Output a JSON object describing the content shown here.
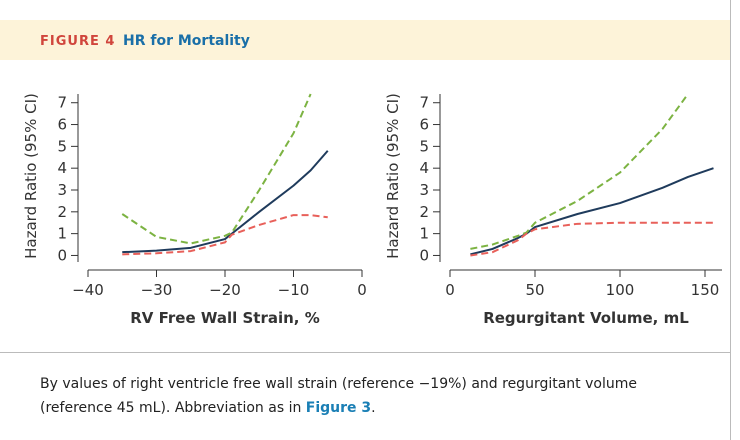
{
  "header": {
    "label": "FIGURE 4",
    "title": "HR for Mortality"
  },
  "chart_data": [
    {
      "type": "line",
      "ylabel": "Hazard Ratio (95% CI)",
      "xlabel": "RV Free Wall Strain, %",
      "x": [
        -35,
        -30,
        -25,
        -20,
        -19,
        -15,
        -10,
        -7.5,
        -5
      ],
      "series": [
        {
          "color": "#1f3b5c",
          "dash": false,
          "values": [
            0.15,
            0.22,
            0.35,
            0.75,
            1.0,
            2.0,
            3.2,
            3.9,
            4.8
          ]
        },
        {
          "color": "#7cb342",
          "dash": true,
          "values": [
            1.9,
            0.85,
            0.55,
            0.9,
            1.05,
            3.0,
            5.6,
            7.4,
            null
          ]
        },
        {
          "color": "#e8605a",
          "dash": true,
          "values": [
            0.05,
            0.1,
            0.2,
            0.6,
            0.95,
            1.4,
            1.85,
            1.85,
            1.75
          ]
        }
      ],
      "xlim": [
        -40,
        0
      ],
      "xticks": [
        {
          "value": -40,
          "label": "−40"
        },
        {
          "value": -30,
          "label": "−30"
        },
        {
          "value": -20,
          "label": "−20"
        },
        {
          "value": -10,
          "label": "−10"
        },
        0
      ],
      "ylim": [
        -0.3,
        7.4
      ],
      "yticks": [
        0,
        1,
        2,
        3,
        4,
        5,
        6,
        7
      ]
    },
    {
      "type": "line",
      "ylabel": "Hazard Ratio (95% CI)",
      "xlabel": "Regurgitant Volume, mL",
      "x": [
        12,
        25,
        40,
        45,
        50,
        75,
        100,
        125,
        140,
        155
      ],
      "series": [
        {
          "color": "#1f3b5c",
          "dash": false,
          "values": [
            0.05,
            0.3,
            0.8,
            1.0,
            1.3,
            1.9,
            2.4,
            3.1,
            3.6,
            4.0
          ]
        },
        {
          "color": "#7cb342",
          "dash": true,
          "values": [
            0.3,
            0.5,
            0.9,
            1.05,
            1.5,
            2.5,
            3.8,
            5.8,
            7.4,
            null
          ]
        },
        {
          "color": "#e8605a",
          "dash": true,
          "values": [
            0.0,
            0.15,
            0.7,
            1.0,
            1.2,
            1.45,
            1.5,
            1.5,
            1.5,
            1.5
          ]
        }
      ],
      "xlim": [
        0,
        160
      ],
      "xticks": [
        0,
        50,
        100,
        150
      ],
      "ylim": [
        -0.3,
        7.4
      ],
      "yticks": [
        0,
        1,
        2,
        3,
        4,
        5,
        6,
        7
      ]
    }
  ],
  "caption": {
    "text": "By values of right ventricle free wall strain (reference −19%) and regurgitant volume (reference 45 mL). Abbreviation as in ",
    "link": "Figure 3",
    "end": "."
  }
}
